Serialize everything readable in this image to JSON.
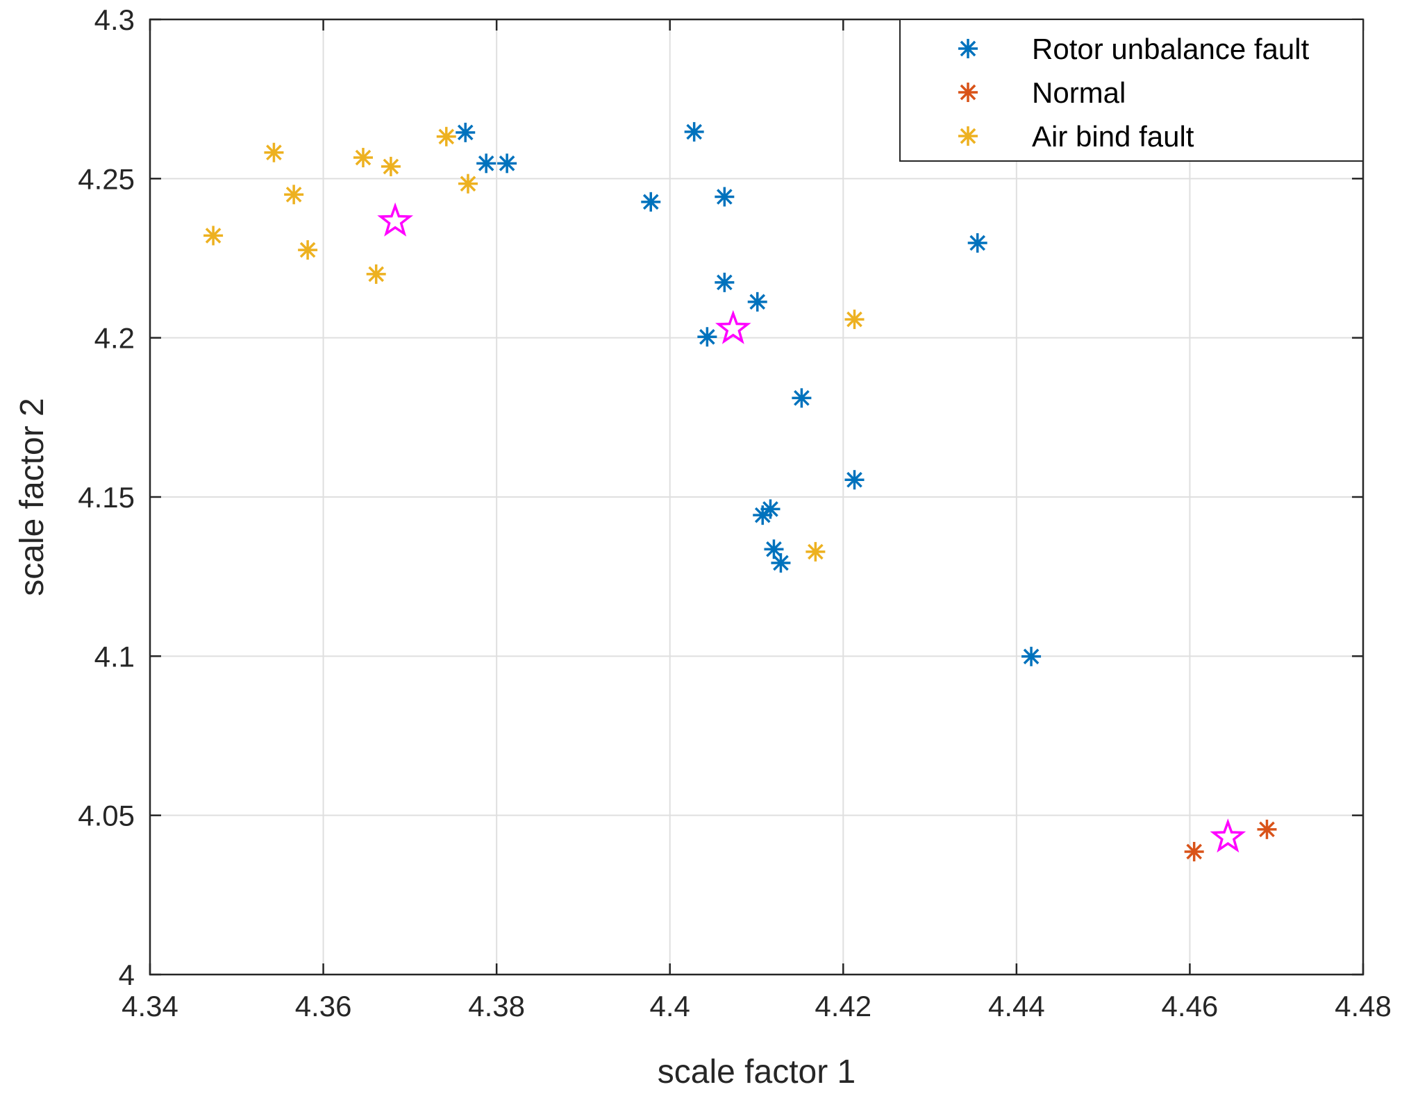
{
  "chart_data": {
    "type": "scatter",
    "xlabel": "scale factor 1",
    "ylabel": "scale factor 2",
    "xlim": [
      4.34,
      4.48
    ],
    "ylim": [
      4.0,
      4.3
    ],
    "xticks": [
      4.34,
      4.36,
      4.38,
      4.4,
      4.42,
      4.44,
      4.46,
      4.48
    ],
    "yticks": [
      4.0,
      4.05,
      4.1,
      4.15,
      4.2,
      4.25,
      4.3
    ],
    "xtick_labels": [
      "4.34",
      "4.36",
      "4.38",
      "4.4",
      "4.42",
      "4.44",
      "4.46",
      "4.48"
    ],
    "ytick_labels": [
      "4",
      "4.05",
      "4.1",
      "4.15",
      "4.2",
      "4.25",
      "4.3"
    ],
    "grid": true,
    "legend_position": "top-right",
    "series": [
      {
        "name": "Rotor unbalance fault",
        "color": "#0072BD",
        "marker": "asterisk",
        "points": [
          [
            4.3764,
            4.2645
          ],
          [
            4.3788,
            4.2548
          ],
          [
            4.3812,
            4.2548
          ],
          [
            4.3978,
            4.2427
          ],
          [
            4.4028,
            4.2647
          ],
          [
            4.4063,
            4.2443
          ],
          [
            4.4063,
            4.2174
          ],
          [
            4.4101,
            4.2113
          ],
          [
            4.4043,
            4.2003
          ],
          [
            4.4152,
            4.1811
          ],
          [
            4.4213,
            4.1554
          ],
          [
            4.4116,
            4.1462
          ],
          [
            4.4107,
            4.1443
          ],
          [
            4.412,
            4.1336
          ],
          [
            4.4128,
            4.1293
          ],
          [
            4.4355,
            4.2298
          ],
          [
            4.4417,
            4.0999
          ]
        ]
      },
      {
        "name": "Normal",
        "color": "#D95319",
        "marker": "asterisk",
        "points": [
          [
            4.4605,
            4.0386
          ],
          [
            4.4689,
            4.0456
          ]
        ]
      },
      {
        "name": "Air bind fault",
        "color": "#EDB120",
        "marker": "asterisk",
        "points": [
          [
            4.3473,
            4.2321
          ],
          [
            4.3543,
            4.2582
          ],
          [
            4.3566,
            4.245
          ],
          [
            4.3582,
            4.2276
          ],
          [
            4.3646,
            4.2566
          ],
          [
            4.3661,
            4.22
          ],
          [
            4.3678,
            4.2538
          ],
          [
            4.3742,
            4.2632
          ],
          [
            4.3767,
            4.2484
          ],
          [
            4.4213,
            4.2058
          ],
          [
            4.4168,
            4.1328
          ]
        ]
      }
    ],
    "centroids": {
      "color": "#FF00FF",
      "marker": "pentagram",
      "points": [
        [
          4.3683,
          4.2366
        ],
        [
          4.4073,
          4.2028
        ],
        [
          4.4644,
          4.0431
        ]
      ]
    }
  }
}
